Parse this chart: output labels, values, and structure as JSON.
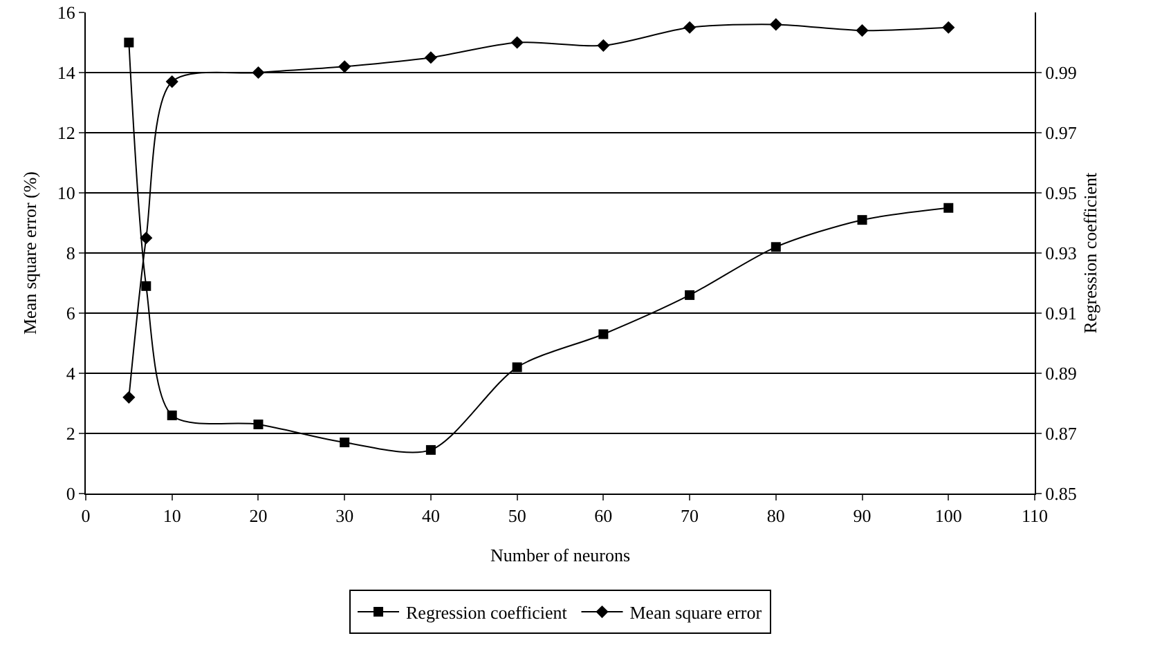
{
  "chart_data": {
    "type": "line",
    "xlabel": "Number of neurons",
    "ylabel": "Mean square error (%)",
    "y2label": "Regression coefficient",
    "x": [
      5,
      7,
      10,
      20,
      30,
      40,
      50,
      60,
      70,
      80,
      90,
      100
    ],
    "series": [
      {
        "name": "Regression coefficient",
        "color": "#000000",
        "marker": "square",
        "values": [
          15,
          6.9,
          2.6,
          2.3,
          1.7,
          1.45,
          4.2,
          5.3,
          6.6,
          8.2,
          9.1,
          9.5
        ]
      },
      {
        "name": "Mean square error",
        "color": "#000000",
        "marker": "diamond",
        "axis": "y2",
        "values": [
          0.882,
          0.935,
          0.987,
          0.99,
          0.992,
          0.995,
          1.0,
          0.999,
          1.005,
          1.006,
          1.004,
          1.005
        ]
      }
    ],
    "xlim": [
      0,
      110
    ],
    "xticks": [
      0,
      10,
      20,
      30,
      40,
      50,
      60,
      70,
      80,
      90,
      100,
      110
    ],
    "ylim": [
      0,
      16
    ],
    "yticks": [
      0,
      2,
      4,
      6,
      8,
      10,
      12,
      14,
      16
    ],
    "y2lim": [
      0.85,
      1.01
    ],
    "y2ticks": [
      0.85,
      0.87,
      0.89,
      0.91,
      0.93,
      0.95,
      0.97,
      0.99
    ],
    "grid": "y",
    "legend": "bottom",
    "line_style": "solid"
  }
}
